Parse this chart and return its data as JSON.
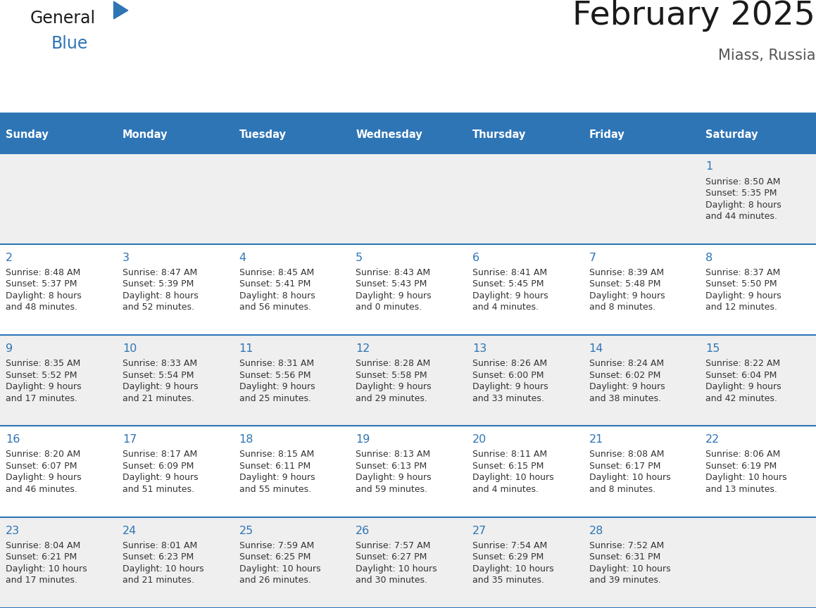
{
  "title": "February 2025",
  "subtitle": "Miass, Russia",
  "header_bg": "#2E75B6",
  "header_text_color": "#FFFFFF",
  "cell_bg_light": "#EFEFEF",
  "cell_bg_white": "#FFFFFF",
  "grid_line_color": "#2E75B6",
  "day_num_color": "#2E75B6",
  "text_color": "#333333",
  "days_of_week": [
    "Sunday",
    "Monday",
    "Tuesday",
    "Wednesday",
    "Thursday",
    "Friday",
    "Saturday"
  ],
  "calendar_data": [
    [
      null,
      null,
      null,
      null,
      null,
      null,
      1
    ],
    [
      2,
      3,
      4,
      5,
      6,
      7,
      8
    ],
    [
      9,
      10,
      11,
      12,
      13,
      14,
      15
    ],
    [
      16,
      17,
      18,
      19,
      20,
      21,
      22
    ],
    [
      23,
      24,
      25,
      26,
      27,
      28,
      null
    ]
  ],
  "sun_data": {
    "1": {
      "sunrise": "8:50 AM",
      "sunset": "5:35 PM",
      "daylight_h": "8 hours",
      "daylight_m": "and 44 minutes."
    },
    "2": {
      "sunrise": "8:48 AM",
      "sunset": "5:37 PM",
      "daylight_h": "8 hours",
      "daylight_m": "and 48 minutes."
    },
    "3": {
      "sunrise": "8:47 AM",
      "sunset": "5:39 PM",
      "daylight_h": "8 hours",
      "daylight_m": "and 52 minutes."
    },
    "4": {
      "sunrise": "8:45 AM",
      "sunset": "5:41 PM",
      "daylight_h": "8 hours",
      "daylight_m": "and 56 minutes."
    },
    "5": {
      "sunrise": "8:43 AM",
      "sunset": "5:43 PM",
      "daylight_h": "9 hours",
      "daylight_m": "and 0 minutes."
    },
    "6": {
      "sunrise": "8:41 AM",
      "sunset": "5:45 PM",
      "daylight_h": "9 hours",
      "daylight_m": "and 4 minutes."
    },
    "7": {
      "sunrise": "8:39 AM",
      "sunset": "5:48 PM",
      "daylight_h": "9 hours",
      "daylight_m": "and 8 minutes."
    },
    "8": {
      "sunrise": "8:37 AM",
      "sunset": "5:50 PM",
      "daylight_h": "9 hours",
      "daylight_m": "and 12 minutes."
    },
    "9": {
      "sunrise": "8:35 AM",
      "sunset": "5:52 PM",
      "daylight_h": "9 hours",
      "daylight_m": "and 17 minutes."
    },
    "10": {
      "sunrise": "8:33 AM",
      "sunset": "5:54 PM",
      "daylight_h": "9 hours",
      "daylight_m": "and 21 minutes."
    },
    "11": {
      "sunrise": "8:31 AM",
      "sunset": "5:56 PM",
      "daylight_h": "9 hours",
      "daylight_m": "and 25 minutes."
    },
    "12": {
      "sunrise": "8:28 AM",
      "sunset": "5:58 PM",
      "daylight_h": "9 hours",
      "daylight_m": "and 29 minutes."
    },
    "13": {
      "sunrise": "8:26 AM",
      "sunset": "6:00 PM",
      "daylight_h": "9 hours",
      "daylight_m": "and 33 minutes."
    },
    "14": {
      "sunrise": "8:24 AM",
      "sunset": "6:02 PM",
      "daylight_h": "9 hours",
      "daylight_m": "and 38 minutes."
    },
    "15": {
      "sunrise": "8:22 AM",
      "sunset": "6:04 PM",
      "daylight_h": "9 hours",
      "daylight_m": "and 42 minutes."
    },
    "16": {
      "sunrise": "8:20 AM",
      "sunset": "6:07 PM",
      "daylight_h": "9 hours",
      "daylight_m": "and 46 minutes."
    },
    "17": {
      "sunrise": "8:17 AM",
      "sunset": "6:09 PM",
      "daylight_h": "9 hours",
      "daylight_m": "and 51 minutes."
    },
    "18": {
      "sunrise": "8:15 AM",
      "sunset": "6:11 PM",
      "daylight_h": "9 hours",
      "daylight_m": "and 55 minutes."
    },
    "19": {
      "sunrise": "8:13 AM",
      "sunset": "6:13 PM",
      "daylight_h": "9 hours",
      "daylight_m": "and 59 minutes."
    },
    "20": {
      "sunrise": "8:11 AM",
      "sunset": "6:15 PM",
      "daylight_h": "10 hours",
      "daylight_m": "and 4 minutes."
    },
    "21": {
      "sunrise": "8:08 AM",
      "sunset": "6:17 PM",
      "daylight_h": "10 hours",
      "daylight_m": "and 8 minutes."
    },
    "22": {
      "sunrise": "8:06 AM",
      "sunset": "6:19 PM",
      "daylight_h": "10 hours",
      "daylight_m": "and 13 minutes."
    },
    "23": {
      "sunrise": "8:04 AM",
      "sunset": "6:21 PM",
      "daylight_h": "10 hours",
      "daylight_m": "and 17 minutes."
    },
    "24": {
      "sunrise": "8:01 AM",
      "sunset": "6:23 PM",
      "daylight_h": "10 hours",
      "daylight_m": "and 21 minutes."
    },
    "25": {
      "sunrise": "7:59 AM",
      "sunset": "6:25 PM",
      "daylight_h": "10 hours",
      "daylight_m": "and 26 minutes."
    },
    "26": {
      "sunrise": "7:57 AM",
      "sunset": "6:27 PM",
      "daylight_h": "10 hours",
      "daylight_m": "and 30 minutes."
    },
    "27": {
      "sunrise": "7:54 AM",
      "sunset": "6:29 PM",
      "daylight_h": "10 hours",
      "daylight_m": "and 35 minutes."
    },
    "28": {
      "sunrise": "7:52 AM",
      "sunset": "6:31 PM",
      "daylight_h": "10 hours",
      "daylight_m": "and 39 minutes."
    }
  },
  "logo_general_color": "#1a1a1a",
  "logo_blue_color": "#2E75B6",
  "logo_triangle_color": "#2E75B6"
}
